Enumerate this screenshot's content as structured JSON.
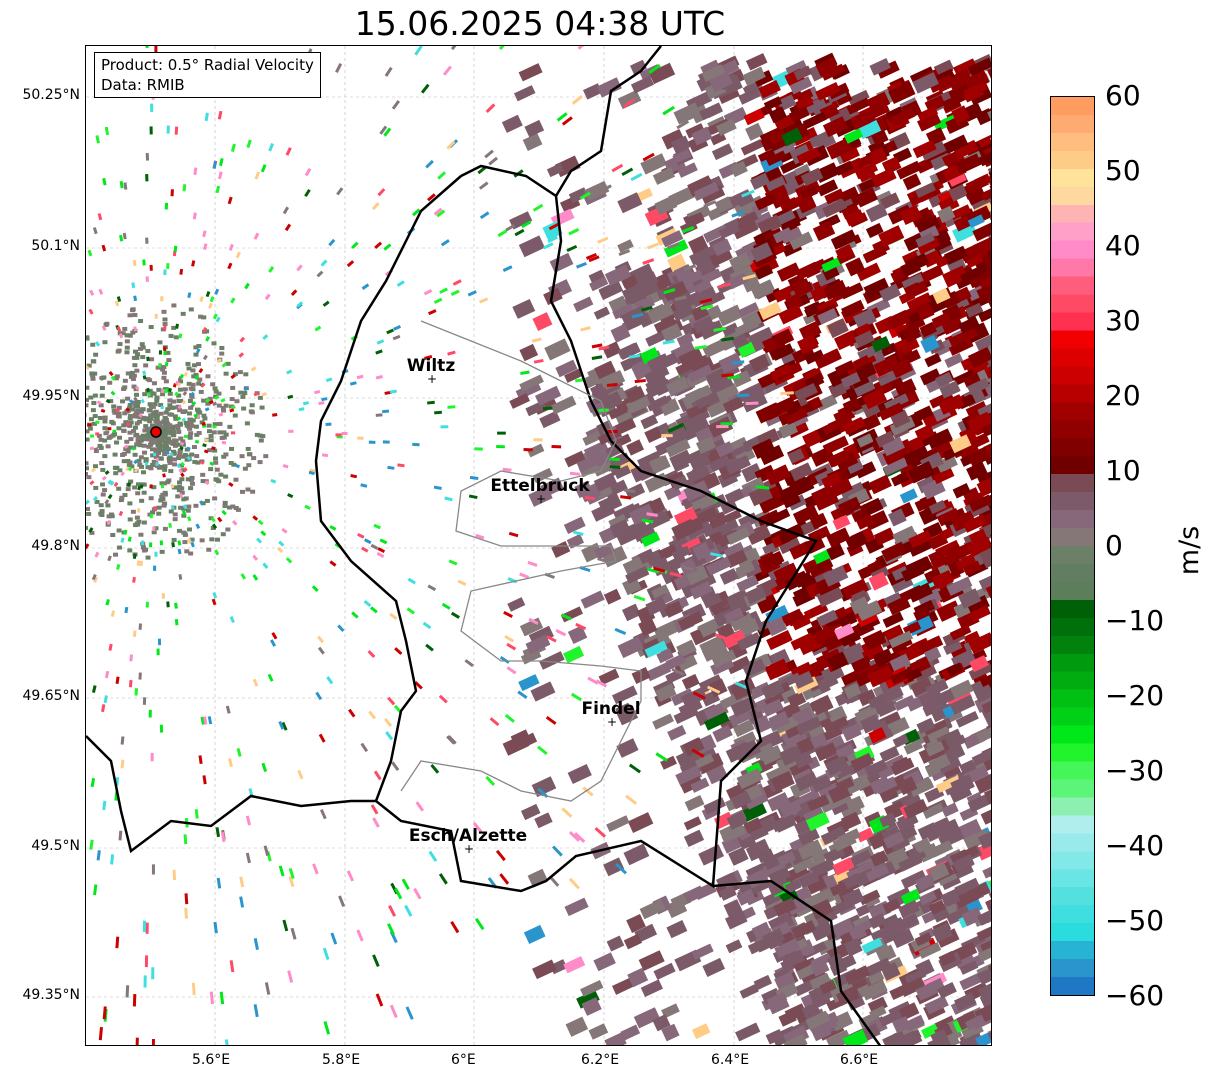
{
  "title": "15.06.2025 04:38 UTC",
  "info": {
    "product": "Product: 0.5° Radial Velocity",
    "data": "Data: RMIB"
  },
  "x_ticks": [
    "5.6°E",
    "5.8°E",
    "6°E",
    "6.2°E",
    "6.4°E",
    "6.6°E"
  ],
  "y_ticks": [
    "50.25°N",
    "50.1°N",
    "49.95°N",
    "49.8°N",
    "49.65°N",
    "49.5°N",
    "49.35°N"
  ],
  "cities": [
    {
      "name": "Wiltz"
    },
    {
      "name": "Ettelbruck"
    },
    {
      "name": "Findel"
    },
    {
      "name": "Esch/Alzette"
    }
  ],
  "colorbar": {
    "label": "m/s",
    "ticks": [
      "60",
      "50",
      "40",
      "30",
      "20",
      "10",
      "0",
      "−10",
      "−20",
      "−30",
      "−40",
      "−50",
      "−60"
    ],
    "colors": [
      "#1f78c4",
      "#2a95cc",
      "#27b3d3",
      "#2bdcdf",
      "#3fdfe0",
      "#55e0e0",
      "#6ae5e5",
      "#83e8e8",
      "#99ebeb",
      "#b0eded",
      "#8ef0b0",
      "#5cf57a",
      "#44f65a",
      "#1ff52a",
      "#00e81a",
      "#00d016",
      "#00c014",
      "#00ac10",
      "#009a0e",
      "#00820c",
      "#00700a",
      "#006008",
      "#5c7e5a",
      "#627e62",
      "#6b8066",
      "#857777",
      "#86687a",
      "#7c5a6a",
      "#7a4b55",
      "#700000",
      "#800000",
      "#900000",
      "#a00000",
      "#b80000",
      "#cc0000",
      "#dd0000",
      "#f00000",
      "#ff3050",
      "#ff4a66",
      "#ff5d7d",
      "#ff78a8",
      "#ff8cc8",
      "#ffa0c8",
      "#ffb4b4",
      "#ffd8a0",
      "#ffe39a",
      "#ffcc88",
      "#ffbd80",
      "#ffaa70",
      "#ff9c60"
    ]
  }
}
